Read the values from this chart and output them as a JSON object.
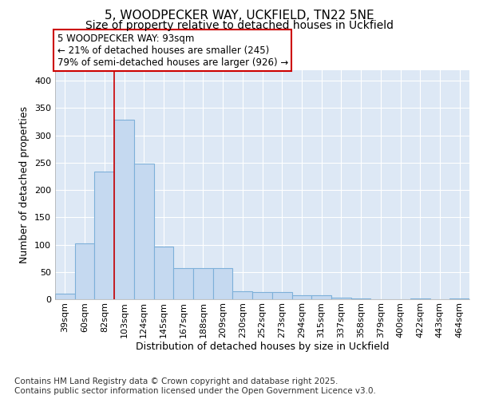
{
  "title_line1": "5, WOODPECKER WAY, UCKFIELD, TN22 5NE",
  "title_line2": "Size of property relative to detached houses in Uckfield",
  "xlabel": "Distribution of detached houses by size in Uckfield",
  "ylabel": "Number of detached properties",
  "categories": [
    "39sqm",
    "60sqm",
    "82sqm",
    "103sqm",
    "124sqm",
    "145sqm",
    "167sqm",
    "188sqm",
    "209sqm",
    "230sqm",
    "252sqm",
    "273sqm",
    "294sqm",
    "315sqm",
    "337sqm",
    "358sqm",
    "379sqm",
    "400sqm",
    "422sqm",
    "443sqm",
    "464sqm"
  ],
  "values": [
    10,
    102,
    234,
    328,
    248,
    96,
    57,
    57,
    57,
    15,
    13,
    13,
    8,
    8,
    3,
    2,
    0,
    0,
    2,
    0,
    2
  ],
  "bar_color": "#c5d9f0",
  "bar_edge_color": "#7db0d9",
  "vline_x": 2.5,
  "vline_color": "#cc0000",
  "annotation_text": "5 WOODPECKER WAY: 93sqm\n← 21% of detached houses are smaller (245)\n79% of semi-detached houses are larger (926) →",
  "annotation_box_facecolor": "#ffffff",
  "annotation_box_edgecolor": "#cc0000",
  "ylim": [
    0,
    420
  ],
  "yticks": [
    0,
    50,
    100,
    150,
    200,
    250,
    300,
    350,
    400
  ],
  "figure_facecolor": "#ffffff",
  "axes_facecolor": "#dde8f5",
  "grid_color": "#ffffff",
  "footer_text": "Contains HM Land Registry data © Crown copyright and database right 2025.\nContains public sector information licensed under the Open Government Licence v3.0.",
  "title_fontsize": 11,
  "subtitle_fontsize": 10,
  "axis_label_fontsize": 9,
  "tick_fontsize": 8,
  "annotation_fontsize": 8.5,
  "footer_fontsize": 7.5
}
